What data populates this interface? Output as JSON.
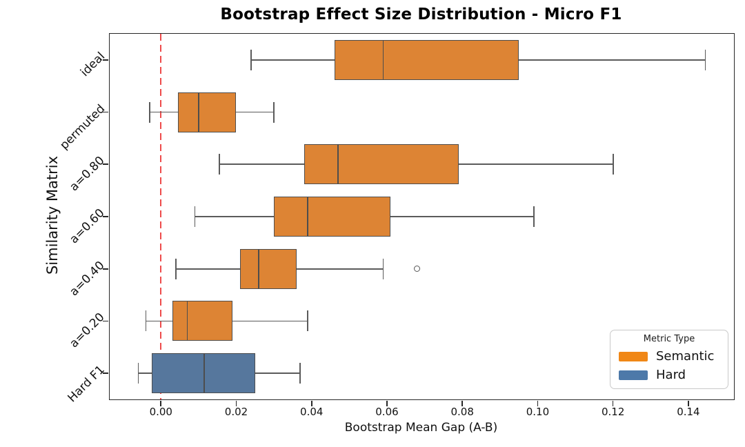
{
  "chart_data": {
    "type": "boxplot",
    "orientation": "horizontal",
    "title": "Bootstrap Effect Size Distribution - Micro F1",
    "xlabel": "Bootstrap Mean Gap (A-B)",
    "ylabel": "Similarity Matrix",
    "xlim": [
      -0.0136,
      0.1521
    ],
    "grid": false,
    "xticks": {
      "values": [
        0.0,
        0.02,
        0.04,
        0.06,
        0.08,
        0.1,
        0.12,
        0.14
      ],
      "labels": [
        "0.00",
        "0.02",
        "0.04",
        "0.06",
        "0.08",
        "0.10",
        "0.12",
        "0.14"
      ]
    },
    "reference_line": {
      "x": 0.0,
      "style": "dashed",
      "color": "#ee4b4b"
    },
    "categories": [
      "ideal",
      "permuted",
      "a=0.80",
      "a=0.60",
      "a=0.40",
      "a=0.20",
      "Hard F1"
    ],
    "boxes": [
      {
        "category": "ideal",
        "metric_type": "Semantic",
        "whisker_low": 0.024,
        "q1": 0.046,
        "median": 0.059,
        "q3": 0.095,
        "whisker_high": 0.1445,
        "outliers": []
      },
      {
        "category": "permuted",
        "metric_type": "Semantic",
        "whisker_low": -0.003,
        "q1": 0.0045,
        "median": 0.01,
        "q3": 0.02,
        "whisker_high": 0.03,
        "outliers": []
      },
      {
        "category": "a=0.80",
        "metric_type": "Semantic",
        "whisker_low": 0.0155,
        "q1": 0.038,
        "median": 0.047,
        "q3": 0.079,
        "whisker_high": 0.12,
        "outliers": []
      },
      {
        "category": "a=0.60",
        "metric_type": "Semantic",
        "whisker_low": 0.009,
        "q1": 0.03,
        "median": 0.039,
        "q3": 0.061,
        "whisker_high": 0.099,
        "outliers": []
      },
      {
        "category": "a=0.40",
        "metric_type": "Semantic",
        "whisker_low": 0.004,
        "q1": 0.021,
        "median": 0.026,
        "q3": 0.036,
        "whisker_high": 0.059,
        "outliers": [
          0.068
        ]
      },
      {
        "category": "a=0.20",
        "metric_type": "Semantic",
        "whisker_low": -0.004,
        "q1": 0.003,
        "median": 0.007,
        "q3": 0.019,
        "whisker_high": 0.039,
        "outliers": []
      },
      {
        "category": "Hard F1",
        "metric_type": "Hard",
        "whisker_low": -0.006,
        "q1": -0.0025,
        "median": 0.0115,
        "q3": 0.025,
        "whisker_high": 0.037,
        "outliers": []
      }
    ],
    "legend": {
      "title": "Metric Type",
      "position": "lower right",
      "entries": [
        {
          "label": "Semantic",
          "color": "#f08716"
        },
        {
          "label": "Hard",
          "color": "#4d79a9"
        }
      ]
    },
    "colors": {
      "semantic_box_fill": "#dd8434",
      "hard_box_fill": "#56779d",
      "box_edge": "#4d4d4d",
      "whisker": "#5a5a5a",
      "background": "#ffffff"
    }
  }
}
